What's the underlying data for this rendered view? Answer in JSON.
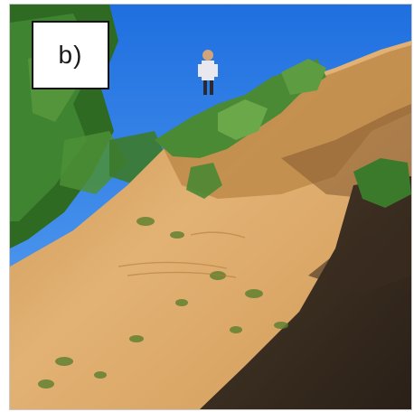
{
  "panel": {
    "label": "b)"
  },
  "colors": {
    "sky": "#2f7fe6",
    "sand": "#d9a55e",
    "shadow": "#3a2e22",
    "foliage": "#3f7a2c"
  }
}
